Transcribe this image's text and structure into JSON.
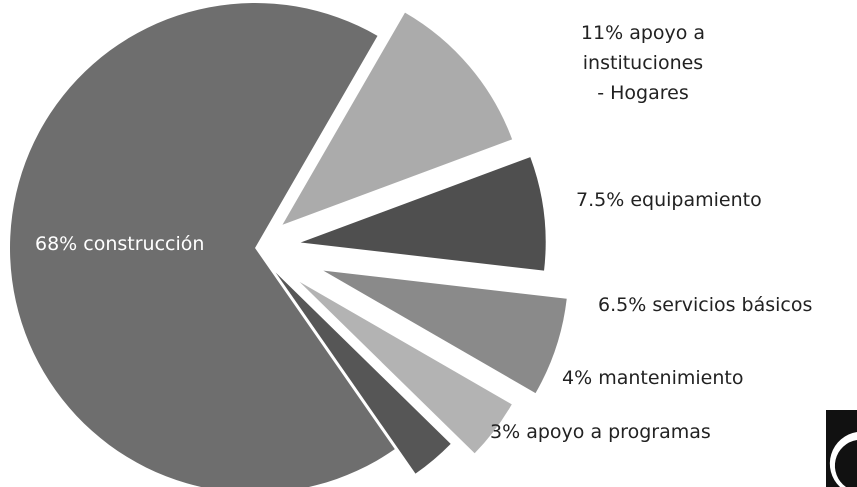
{
  "chart_data": {
    "type": "pie",
    "categories": [
      "construcción",
      "apoyo a instituciones\n- Hogares",
      "equipamiento",
      "servicios básicos",
      "mantenimiento",
      "apoyo a programas"
    ],
    "values": [
      68,
      11,
      7.5,
      6.5,
      4,
      3
    ],
    "value_labels": [
      "68%",
      "11%",
      "7.5%",
      "6.5%",
      "4%",
      "3%"
    ],
    "colors": [
      "#6e6e6e",
      "#ababab",
      "#4f4f4f",
      "#8a8a8a",
      "#b3b3b3",
      "#565656"
    ]
  }
}
